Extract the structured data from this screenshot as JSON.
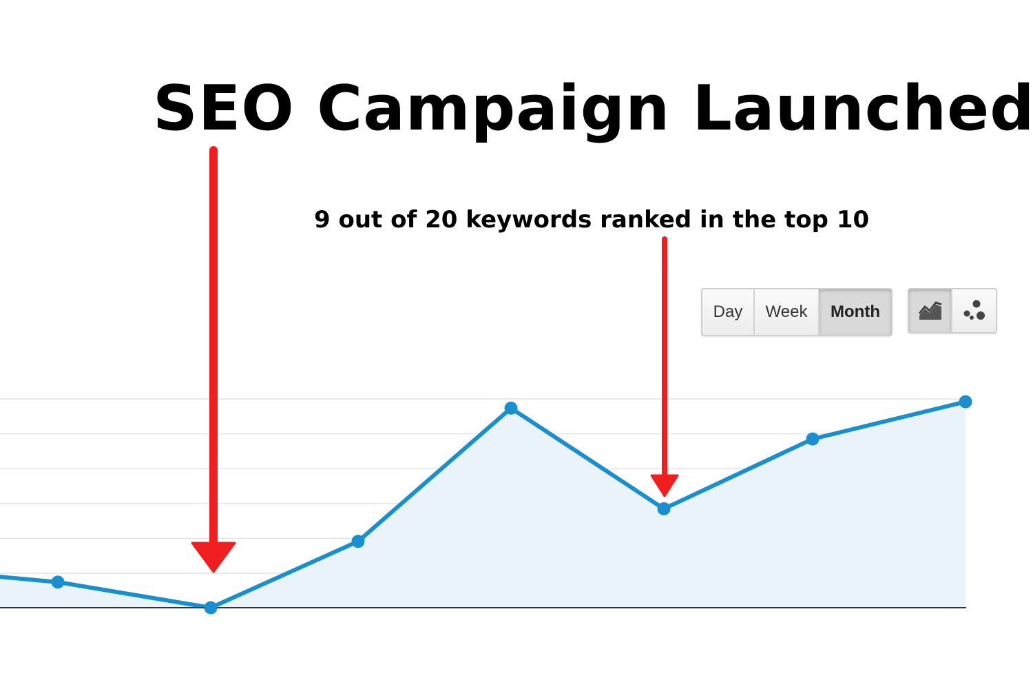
{
  "headline": "SEO Campaign Launched",
  "annotation": "9 out of 20 keywords ranked in the top 10",
  "controls": {
    "granularity": [
      {
        "label": "Day",
        "active": false
      },
      {
        "label": "Week",
        "active": false
      },
      {
        "label": "Month",
        "active": true
      }
    ],
    "view_toggles": [
      {
        "icon": "line-chart-icon",
        "active": true
      },
      {
        "icon": "motion-chart-icon",
        "active": false
      }
    ]
  },
  "colors": {
    "line": "#1a8fcf",
    "fill": "#eaf3fa",
    "arrow": "#f01e1e",
    "grid": "#e4e4e4",
    "axis": "#333333"
  },
  "chart_data": {
    "type": "area",
    "x": [
      0,
      1,
      2,
      3,
      4,
      5,
      6,
      7,
      8
    ],
    "values": [
      6.8,
      4.4,
      0,
      11.4,
      34.3,
      17.0,
      29.0,
      35.4,
      35.4
    ],
    "ylim": [
      0,
      36
    ],
    "grid": true,
    "markers_at": [
      1,
      2,
      3,
      4,
      5,
      6,
      7
    ],
    "annotations": [
      {
        "text": "SEO Campaign Launched",
        "target_index": 2
      },
      {
        "text": "9 out of 20 keywords ranked in the top 10",
        "target_index": 5
      }
    ]
  }
}
